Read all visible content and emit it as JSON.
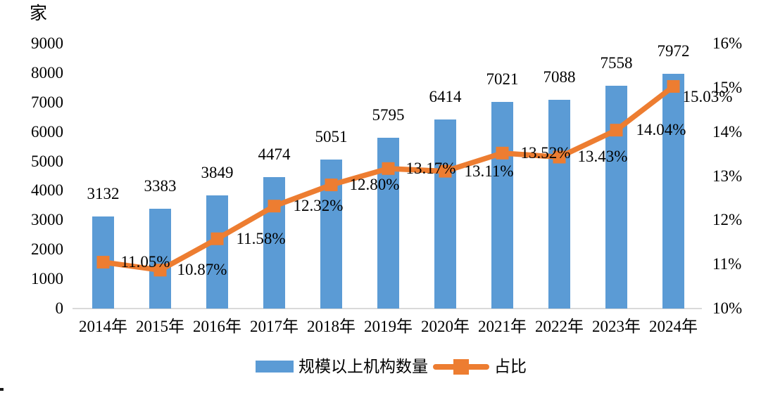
{
  "chart_data": {
    "type": "combo (bar + line)",
    "title": "",
    "categories": [
      "2014年",
      "2015年",
      "2016年",
      "2017年",
      "2018年",
      "2019年",
      "2020年",
      "2021年",
      "2022年",
      "2023年",
      "2024年"
    ],
    "series": [
      {
        "name": "规模以上机构数量",
        "type": "bar",
        "axis": "left",
        "color": "#5b9bd5",
        "values": [
          3132,
          3383,
          3849,
          4474,
          5051,
          5795,
          6414,
          7021,
          7088,
          7558,
          7972
        ],
        "value_labels": [
          "3132",
          "3383",
          "3849",
          "4474",
          "5051",
          "5795",
          "6414",
          "7021",
          "7088",
          "7558",
          "7972"
        ]
      },
      {
        "name": "占比",
        "type": "line",
        "axis": "right",
        "color": "#ed7d31",
        "values": [
          11.05,
          10.87,
          11.58,
          12.32,
          12.8,
          13.17,
          13.11,
          13.52,
          13.43,
          14.04,
          15.03
        ],
        "value_labels": [
          "11.05%",
          "10.87%",
          "11.58%",
          "12.32%",
          "12.80%",
          "13.17%",
          "13.11%",
          "13.52%",
          "13.43%",
          "14.04%",
          "15.03%"
        ]
      }
    ],
    "left_axis": {
      "unit": "家",
      "min": 0,
      "max": 9000,
      "step": 1000,
      "tick_labels": [
        "9000",
        "8000",
        "7000",
        "6000",
        "5000",
        "4000",
        "3000",
        "2000",
        "1000",
        "0"
      ]
    },
    "right_axis": {
      "min": 10,
      "max": 16,
      "step": 1,
      "tick_labels": [
        "16%",
        "15%",
        "14%",
        "13%",
        "12%",
        "11%",
        "10%"
      ]
    },
    "legend_position": "bottom",
    "grid": false
  },
  "colors": {
    "bar": "#5b9bd5",
    "line": "#ed7d31",
    "axis_line": "#d9d9d9",
    "text": "#000000"
  }
}
